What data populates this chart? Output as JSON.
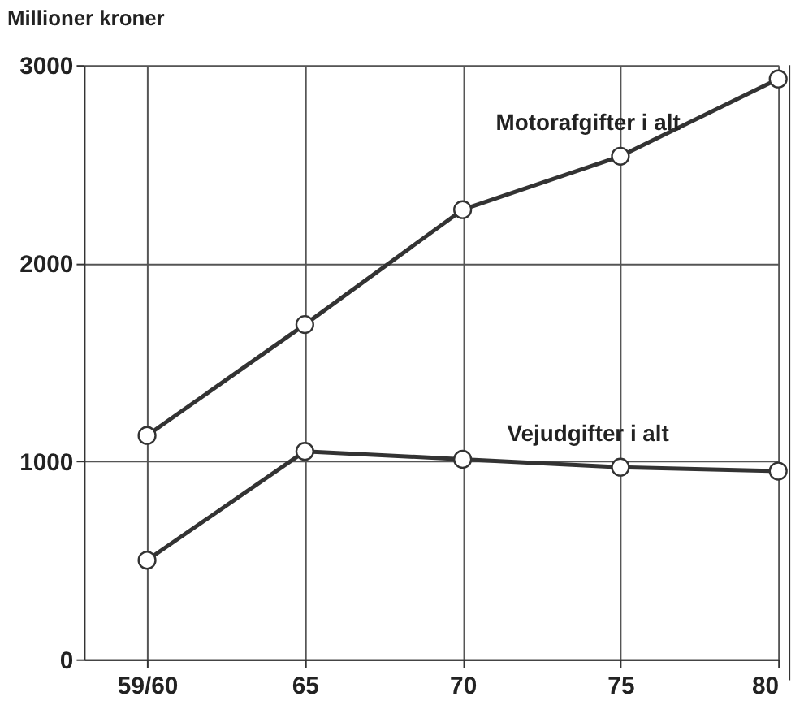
{
  "chart_data": {
    "type": "line",
    "ylabel": "Millioner kroner",
    "categories": [
      "59/60",
      "65",
      "70",
      "75",
      "80"
    ],
    "series": [
      {
        "name": "Motorafgifter i alt",
        "color": "#333333",
        "values": [
          1130,
          1690,
          2270,
          2540,
          2930
        ]
      },
      {
        "name": "Vejudgifter i alt",
        "color": "#333333",
        "values": [
          500,
          1050,
          1010,
          970,
          950
        ]
      }
    ],
    "ylim": [
      0,
      3000
    ],
    "yticks": [
      0,
      1000,
      2000,
      3000
    ],
    "grid": true,
    "marker": "circle",
    "line_style": "solid",
    "legend": false
  }
}
